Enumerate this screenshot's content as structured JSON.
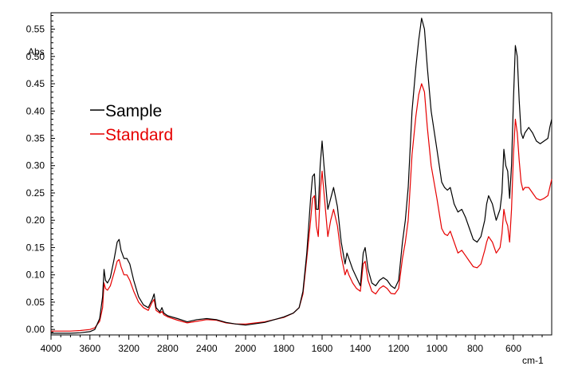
{
  "chart_data": {
    "type": "line",
    "xlabel": "cm-1",
    "ylabel": "Abs",
    "xlim": [
      4000,
      400
    ],
    "ylim": [
      -0.01,
      0.58
    ],
    "x_ticks": [
      "4000",
      "3600",
      "3200",
      "2800",
      "2400",
      "2000",
      "1800",
      "1600",
      "1400",
      "1200",
      "1000",
      "800",
      "600"
    ],
    "y_ticks": [
      "0.00",
      "0.05",
      "0.10",
      "0.15",
      "0.20",
      "0.25",
      "0.30",
      "0.35",
      "0.40",
      "0.45",
      "0.50",
      "0.55"
    ],
    "grid": false,
    "legend_position": "left",
    "series": [
      {
        "name": "Sample",
        "color": "#000000",
        "points": [
          [
            4000,
            -0.007
          ],
          [
            3800,
            -0.007
          ],
          [
            3700,
            -0.006
          ],
          [
            3600,
            -0.004
          ],
          [
            3550,
            0.0
          ],
          [
            3500,
            0.02
          ],
          [
            3470,
            0.06
          ],
          [
            3455,
            0.11
          ],
          [
            3440,
            0.09
          ],
          [
            3420,
            0.085
          ],
          [
            3390,
            0.095
          ],
          [
            3350,
            0.13
          ],
          [
            3320,
            0.16
          ],
          [
            3300,
            0.165
          ],
          [
            3280,
            0.145
          ],
          [
            3250,
            0.13
          ],
          [
            3220,
            0.13
          ],
          [
            3190,
            0.12
          ],
          [
            3150,
            0.09
          ],
          [
            3100,
            0.06
          ],
          [
            3050,
            0.045
          ],
          [
            3000,
            0.04
          ],
          [
            2960,
            0.055
          ],
          [
            2940,
            0.065
          ],
          [
            2920,
            0.04
          ],
          [
            2880,
            0.032
          ],
          [
            2860,
            0.04
          ],
          [
            2840,
            0.03
          ],
          [
            2800,
            0.025
          ],
          [
            2700,
            0.02
          ],
          [
            2600,
            0.014
          ],
          [
            2500,
            0.018
          ],
          [
            2400,
            0.02
          ],
          [
            2300,
            0.018
          ],
          [
            2200,
            0.013
          ],
          [
            2100,
            0.01
          ],
          [
            2000,
            0.008
          ],
          [
            1900,
            0.013
          ],
          [
            1800,
            0.023
          ],
          [
            1750,
            0.03
          ],
          [
            1720,
            0.04
          ],
          [
            1700,
            0.07
          ],
          [
            1680,
            0.14
          ],
          [
            1660,
            0.24
          ],
          [
            1650,
            0.28
          ],
          [
            1640,
            0.285
          ],
          [
            1630,
            0.22
          ],
          [
            1620,
            0.22
          ],
          [
            1610,
            0.3
          ],
          [
            1600,
            0.345
          ],
          [
            1590,
            0.3
          ],
          [
            1570,
            0.22
          ],
          [
            1555,
            0.24
          ],
          [
            1540,
            0.26
          ],
          [
            1520,
            0.225
          ],
          [
            1500,
            0.16
          ],
          [
            1480,
            0.12
          ],
          [
            1470,
            0.14
          ],
          [
            1460,
            0.13
          ],
          [
            1440,
            0.11
          ],
          [
            1420,
            0.095
          ],
          [
            1400,
            0.08
          ],
          [
            1385,
            0.14
          ],
          [
            1375,
            0.15
          ],
          [
            1360,
            0.11
          ],
          [
            1340,
            0.085
          ],
          [
            1320,
            0.08
          ],
          [
            1300,
            0.09
          ],
          [
            1280,
            0.095
          ],
          [
            1260,
            0.09
          ],
          [
            1240,
            0.08
          ],
          [
            1220,
            0.075
          ],
          [
            1200,
            0.09
          ],
          [
            1180,
            0.16
          ],
          [
            1165,
            0.2
          ],
          [
            1150,
            0.26
          ],
          [
            1130,
            0.4
          ],
          [
            1110,
            0.48
          ],
          [
            1095,
            0.53
          ],
          [
            1080,
            0.57
          ],
          [
            1065,
            0.55
          ],
          [
            1050,
            0.48
          ],
          [
            1030,
            0.4
          ],
          [
            1000,
            0.33
          ],
          [
            975,
            0.27
          ],
          [
            960,
            0.26
          ],
          [
            945,
            0.255
          ],
          [
            930,
            0.26
          ],
          [
            910,
            0.23
          ],
          [
            890,
            0.215
          ],
          [
            870,
            0.22
          ],
          [
            850,
            0.205
          ],
          [
            830,
            0.185
          ],
          [
            810,
            0.165
          ],
          [
            790,
            0.16
          ],
          [
            770,
            0.17
          ],
          [
            750,
            0.2
          ],
          [
            740,
            0.23
          ],
          [
            730,
            0.245
          ],
          [
            710,
            0.23
          ],
          [
            690,
            0.2
          ],
          [
            670,
            0.22
          ],
          [
            660,
            0.25
          ],
          [
            650,
            0.33
          ],
          [
            640,
            0.3
          ],
          [
            630,
            0.29
          ],
          [
            620,
            0.24
          ],
          [
            610,
            0.3
          ],
          [
            600,
            0.42
          ],
          [
            590,
            0.52
          ],
          [
            580,
            0.5
          ],
          [
            570,
            0.42
          ],
          [
            560,
            0.36
          ],
          [
            550,
            0.35
          ],
          [
            540,
            0.36
          ],
          [
            520,
            0.37
          ],
          [
            500,
            0.36
          ],
          [
            480,
            0.345
          ],
          [
            460,
            0.34
          ],
          [
            440,
            0.345
          ],
          [
            420,
            0.35
          ],
          [
            410,
            0.37
          ],
          [
            400,
            0.385
          ]
        ]
      },
      {
        "name": "Standard",
        "color": "#e60000",
        "points": [
          [
            4000,
            -0.003
          ],
          [
            3800,
            -0.003
          ],
          [
            3700,
            -0.002
          ],
          [
            3600,
            0.0
          ],
          [
            3550,
            0.003
          ],
          [
            3500,
            0.015
          ],
          [
            3470,
            0.04
          ],
          [
            3455,
            0.085
          ],
          [
            3440,
            0.075
          ],
          [
            3420,
            0.072
          ],
          [
            3390,
            0.08
          ],
          [
            3350,
            0.105
          ],
          [
            3320,
            0.125
          ],
          [
            3300,
            0.128
          ],
          [
            3280,
            0.115
          ],
          [
            3250,
            0.1
          ],
          [
            3220,
            0.1
          ],
          [
            3190,
            0.09
          ],
          [
            3150,
            0.07
          ],
          [
            3100,
            0.05
          ],
          [
            3050,
            0.04
          ],
          [
            3000,
            0.035
          ],
          [
            2960,
            0.05
          ],
          [
            2940,
            0.055
          ],
          [
            2920,
            0.035
          ],
          [
            2880,
            0.03
          ],
          [
            2860,
            0.033
          ],
          [
            2840,
            0.027
          ],
          [
            2800,
            0.023
          ],
          [
            2700,
            0.017
          ],
          [
            2600,
            0.012
          ],
          [
            2500,
            0.015
          ],
          [
            2400,
            0.018
          ],
          [
            2300,
            0.017
          ],
          [
            2200,
            0.012
          ],
          [
            2100,
            0.01
          ],
          [
            2000,
            0.01
          ],
          [
            1900,
            0.014
          ],
          [
            1800,
            0.022
          ],
          [
            1750,
            0.03
          ],
          [
            1720,
            0.04
          ],
          [
            1700,
            0.065
          ],
          [
            1680,
            0.13
          ],
          [
            1660,
            0.2
          ],
          [
            1650,
            0.24
          ],
          [
            1640,
            0.245
          ],
          [
            1630,
            0.19
          ],
          [
            1620,
            0.17
          ],
          [
            1610,
            0.25
          ],
          [
            1600,
            0.29
          ],
          [
            1590,
            0.25
          ],
          [
            1570,
            0.17
          ],
          [
            1555,
            0.2
          ],
          [
            1540,
            0.22
          ],
          [
            1520,
            0.19
          ],
          [
            1500,
            0.135
          ],
          [
            1480,
            0.1
          ],
          [
            1470,
            0.11
          ],
          [
            1460,
            0.1
          ],
          [
            1440,
            0.085
          ],
          [
            1420,
            0.075
          ],
          [
            1400,
            0.07
          ],
          [
            1385,
            0.12
          ],
          [
            1375,
            0.125
          ],
          [
            1360,
            0.09
          ],
          [
            1340,
            0.07
          ],
          [
            1320,
            0.065
          ],
          [
            1300,
            0.075
          ],
          [
            1280,
            0.08
          ],
          [
            1260,
            0.075
          ],
          [
            1240,
            0.066
          ],
          [
            1220,
            0.065
          ],
          [
            1200,
            0.075
          ],
          [
            1180,
            0.13
          ],
          [
            1165,
            0.16
          ],
          [
            1150,
            0.2
          ],
          [
            1130,
            0.32
          ],
          [
            1110,
            0.39
          ],
          [
            1095,
            0.43
          ],
          [
            1080,
            0.45
          ],
          [
            1065,
            0.435
          ],
          [
            1050,
            0.37
          ],
          [
            1030,
            0.3
          ],
          [
            1000,
            0.24
          ],
          [
            975,
            0.185
          ],
          [
            960,
            0.175
          ],
          [
            945,
            0.172
          ],
          [
            930,
            0.18
          ],
          [
            910,
            0.16
          ],
          [
            890,
            0.14
          ],
          [
            870,
            0.145
          ],
          [
            850,
            0.135
          ],
          [
            830,
            0.125
          ],
          [
            810,
            0.115
          ],
          [
            790,
            0.113
          ],
          [
            770,
            0.12
          ],
          [
            750,
            0.145
          ],
          [
            740,
            0.16
          ],
          [
            730,
            0.17
          ],
          [
            710,
            0.16
          ],
          [
            690,
            0.14
          ],
          [
            670,
            0.15
          ],
          [
            660,
            0.175
          ],
          [
            650,
            0.22
          ],
          [
            640,
            0.2
          ],
          [
            630,
            0.19
          ],
          [
            620,
            0.16
          ],
          [
            610,
            0.22
          ],
          [
            600,
            0.32
          ],
          [
            590,
            0.385
          ],
          [
            580,
            0.36
          ],
          [
            570,
            0.31
          ],
          [
            560,
            0.27
          ],
          [
            550,
            0.255
          ],
          [
            540,
            0.26
          ],
          [
            520,
            0.26
          ],
          [
            500,
            0.25
          ],
          [
            480,
            0.24
          ],
          [
            460,
            0.237
          ],
          [
            440,
            0.24
          ],
          [
            420,
            0.245
          ],
          [
            410,
            0.26
          ],
          [
            400,
            0.275
          ]
        ]
      }
    ]
  }
}
